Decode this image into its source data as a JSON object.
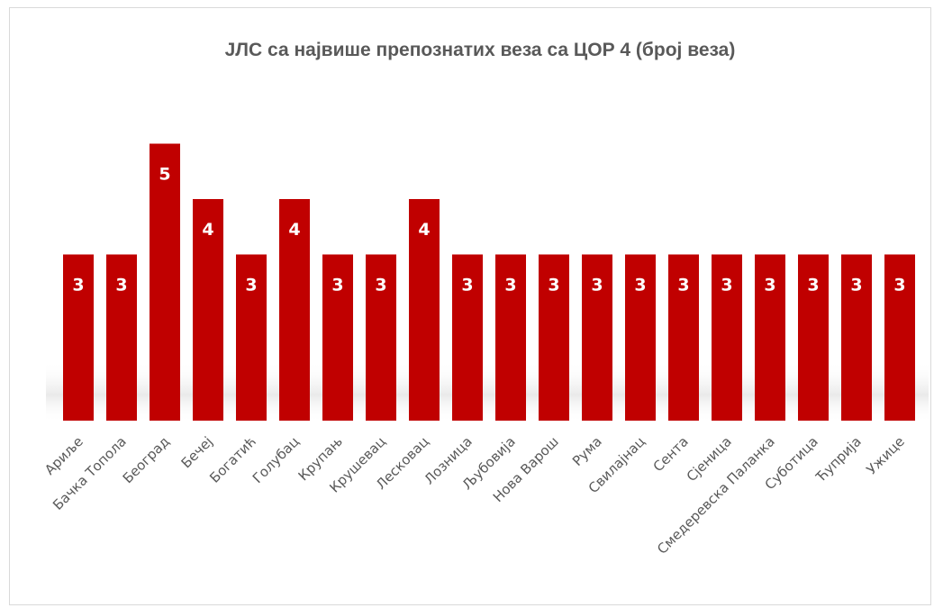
{
  "chart_data": {
    "type": "bar",
    "title": "ЈЛС са највише препознатих веза са ЦОР 4 (број веза)",
    "categories": [
      "Ариље",
      "Бачка Топола",
      "Београд",
      "Бечеј",
      "Богатић",
      "Голубац",
      "Крупањ",
      "Крушевац",
      "Лесковац",
      "Лозница",
      "Љубовија",
      "Нова Варош",
      "Рума",
      "Свилајнац",
      "Сента",
      "Сјеница",
      "Смедеревска Паланка",
      "Суботица",
      "Ћуприја",
      "Ужице"
    ],
    "values": [
      3,
      3,
      5,
      4,
      3,
      4,
      3,
      3,
      4,
      3,
      3,
      3,
      3,
      3,
      3,
      3,
      3,
      3,
      3,
      3
    ],
    "data_labels": true,
    "ylim": [
      0,
      5
    ],
    "grid": false,
    "legend": "none",
    "bar_color": "#c00000"
  }
}
